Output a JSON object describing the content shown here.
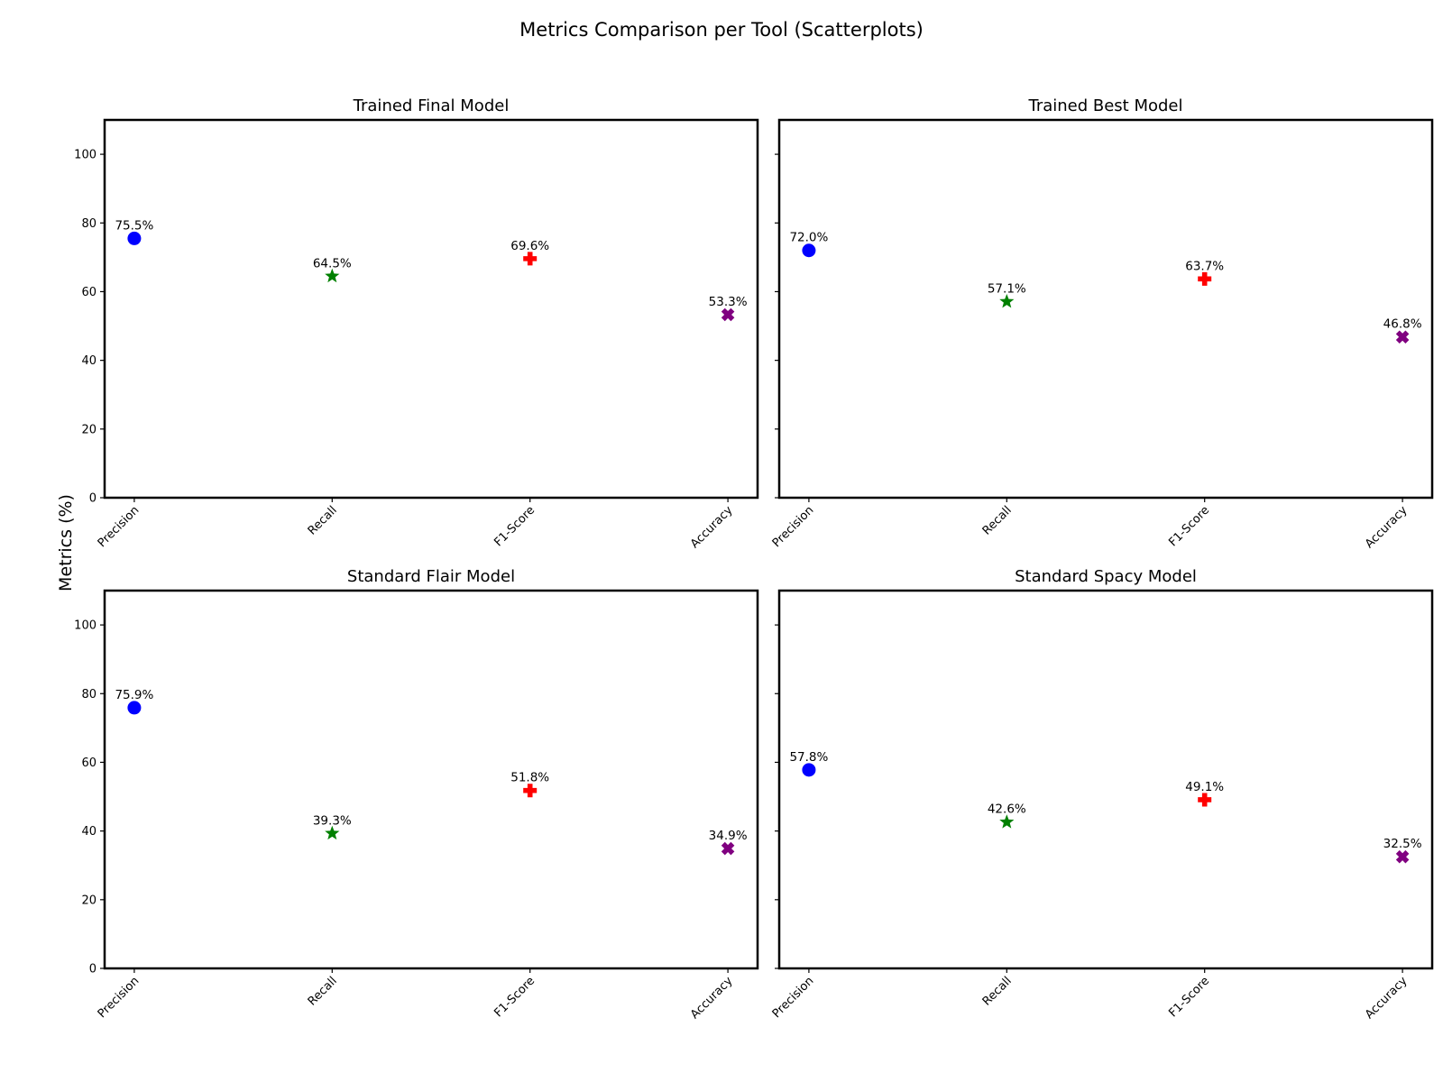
{
  "figure": {
    "title": "Metrics Comparison per Tool (Scatterplots)",
    "ylabel": "Metrics (%)"
  },
  "chart_data": [
    {
      "type": "scatter",
      "title": "Trained Final Model",
      "categories": [
        "Precision",
        "Recall",
        "F1-Score",
        "Accuracy"
      ],
      "values": [
        75.5,
        64.5,
        69.6,
        53.3
      ],
      "labels": [
        "75.5%",
        "64.5%",
        "69.6%",
        "53.3%"
      ],
      "ylim": [
        0,
        110
      ],
      "yticks": [
        0,
        20,
        40,
        60,
        80,
        100
      ],
      "show_ytick_labels": true
    },
    {
      "type": "scatter",
      "title": "Trained Best Model",
      "categories": [
        "Precision",
        "Recall",
        "F1-Score",
        "Accuracy"
      ],
      "values": [
        72.0,
        57.1,
        63.7,
        46.8
      ],
      "labels": [
        "72.0%",
        "57.1%",
        "63.7%",
        "46.8%"
      ],
      "ylim": [
        0,
        110
      ],
      "yticks": [
        0,
        20,
        40,
        60,
        80,
        100
      ],
      "show_ytick_labels": false
    },
    {
      "type": "scatter",
      "title": "Standard Flair Model",
      "categories": [
        "Precision",
        "Recall",
        "F1-Score",
        "Accuracy"
      ],
      "values": [
        75.9,
        39.3,
        51.8,
        34.9
      ],
      "labels": [
        "75.9%",
        "39.3%",
        "51.8%",
        "34.9%"
      ],
      "ylim": [
        0,
        110
      ],
      "yticks": [
        0,
        20,
        40,
        60,
        80,
        100
      ],
      "show_ytick_labels": true
    },
    {
      "type": "scatter",
      "title": "Standard Spacy Model",
      "categories": [
        "Precision",
        "Recall",
        "F1-Score",
        "Accuracy"
      ],
      "values": [
        57.8,
        42.6,
        49.1,
        32.5
      ],
      "labels": [
        "57.8%",
        "42.6%",
        "49.1%",
        "32.5%"
      ],
      "ylim": [
        0,
        110
      ],
      "yticks": [
        0,
        20,
        40,
        60,
        80,
        100
      ],
      "show_ytick_labels": false
    }
  ],
  "markers": [
    {
      "category": "Precision",
      "shape": "circle",
      "color": "#0000ff"
    },
    {
      "category": "Recall",
      "shape": "star",
      "color": "#008000"
    },
    {
      "category": "F1-Score",
      "shape": "plus",
      "color": "#ff0000"
    },
    {
      "category": "Accuracy",
      "shape": "x",
      "color": "#800080"
    }
  ],
  "grid": false
}
